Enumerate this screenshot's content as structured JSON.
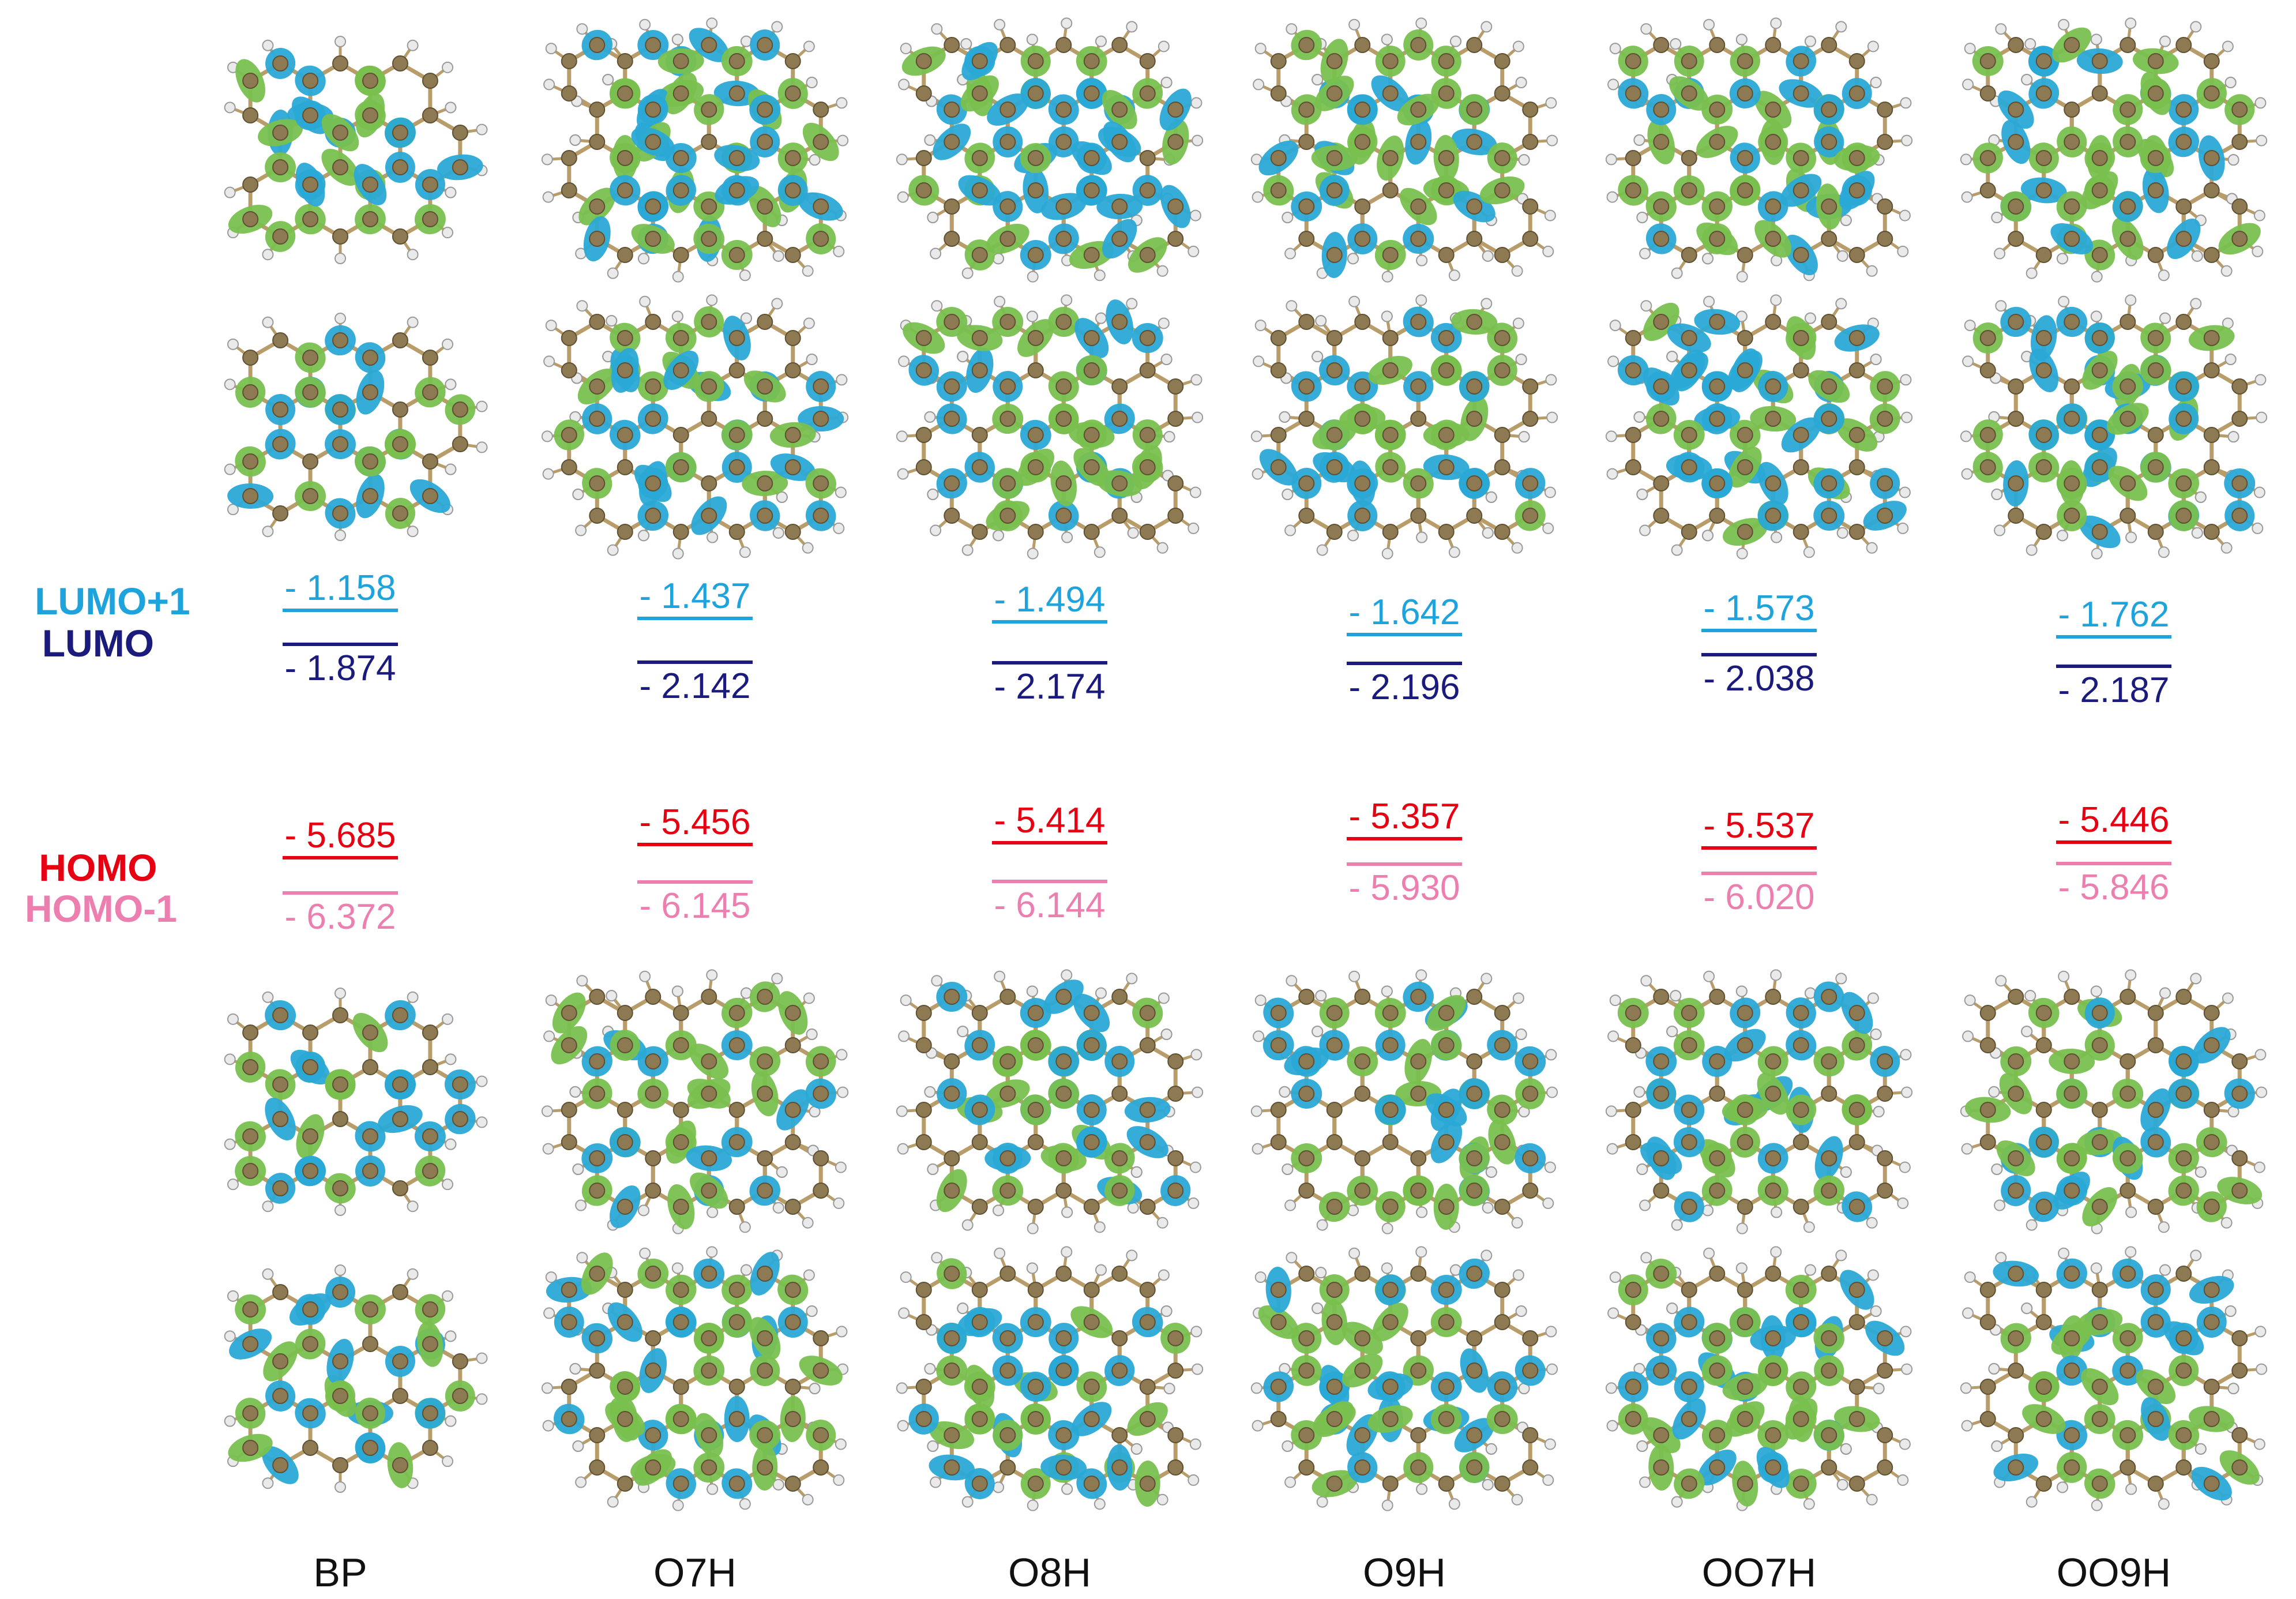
{
  "legend": {
    "lumo_plus_1": "LUMO+1",
    "lumo": "LUMO",
    "homo": "HOMO",
    "homo_minus_1": "HOMO-1"
  },
  "colors": {
    "lumo_plus_1": "#1ea3dd",
    "lumo": "#1b1b7e",
    "homo": "#e60012",
    "homo_minus_1": "#ec7fb0",
    "lobe_blue": "#2ba9d6",
    "lobe_green": "#79c04f",
    "carbon": "#8d7a52",
    "hydrogen": "#eaeaea"
  },
  "molecules": [
    {
      "name": "BP",
      "lumo_plus_1": "- 1.158",
      "lumo": "- 1.874",
      "homo": "- 5.685",
      "homo_minus_1": "- 6.372"
    },
    {
      "name": "O7H",
      "lumo_plus_1": "- 1.437",
      "lumo": "- 2.142",
      "homo": "- 5.456",
      "homo_minus_1": "- 6.145"
    },
    {
      "name": "O8H",
      "lumo_plus_1": "- 1.494",
      "lumo": "- 2.174",
      "homo": "- 5.414",
      "homo_minus_1": "- 6.144"
    },
    {
      "name": "O9H",
      "lumo_plus_1": "- 1.642",
      "lumo": "- 2.196",
      "homo": "- 5.357",
      "homo_minus_1": "- 5.930"
    },
    {
      "name": "OO7H",
      "lumo_plus_1": "- 1.573",
      "lumo": "- 2.038",
      "homo": "- 5.537",
      "homo_minus_1": "- 6.020"
    },
    {
      "name": "OO9H",
      "lumo_plus_1": "- 1.762",
      "lumo": "- 2.187",
      "homo": "- 5.446",
      "homo_minus_1": "- 5.846"
    }
  ]
}
